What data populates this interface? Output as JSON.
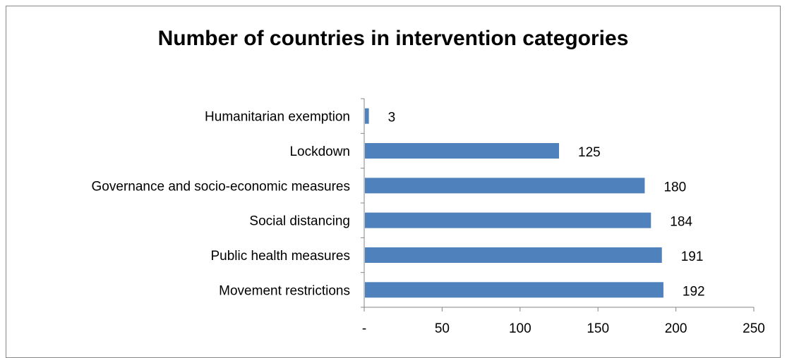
{
  "chart_data": {
    "type": "bar",
    "orientation": "horizontal",
    "title": "Number of countries in intervention categories",
    "categories": [
      "Movement restrictions",
      "Public health measures",
      "Social distancing",
      "Governance and socio-economic measures",
      "Lockdown",
      "Humanitarian exemption"
    ],
    "values": [
      192,
      191,
      184,
      180,
      125,
      3
    ],
    "data_labels": [
      "192",
      "191",
      "184",
      "180",
      "125",
      "3"
    ],
    "xlim": [
      0,
      250
    ],
    "xticks": [
      0,
      50,
      100,
      150,
      200,
      250
    ],
    "xtick_labels": [
      "-",
      "50",
      "100",
      "150",
      "200",
      "250"
    ],
    "xlabel": "",
    "ylabel": "",
    "grid": false,
    "legend": "none",
    "bar_color": "#4F81BD"
  }
}
